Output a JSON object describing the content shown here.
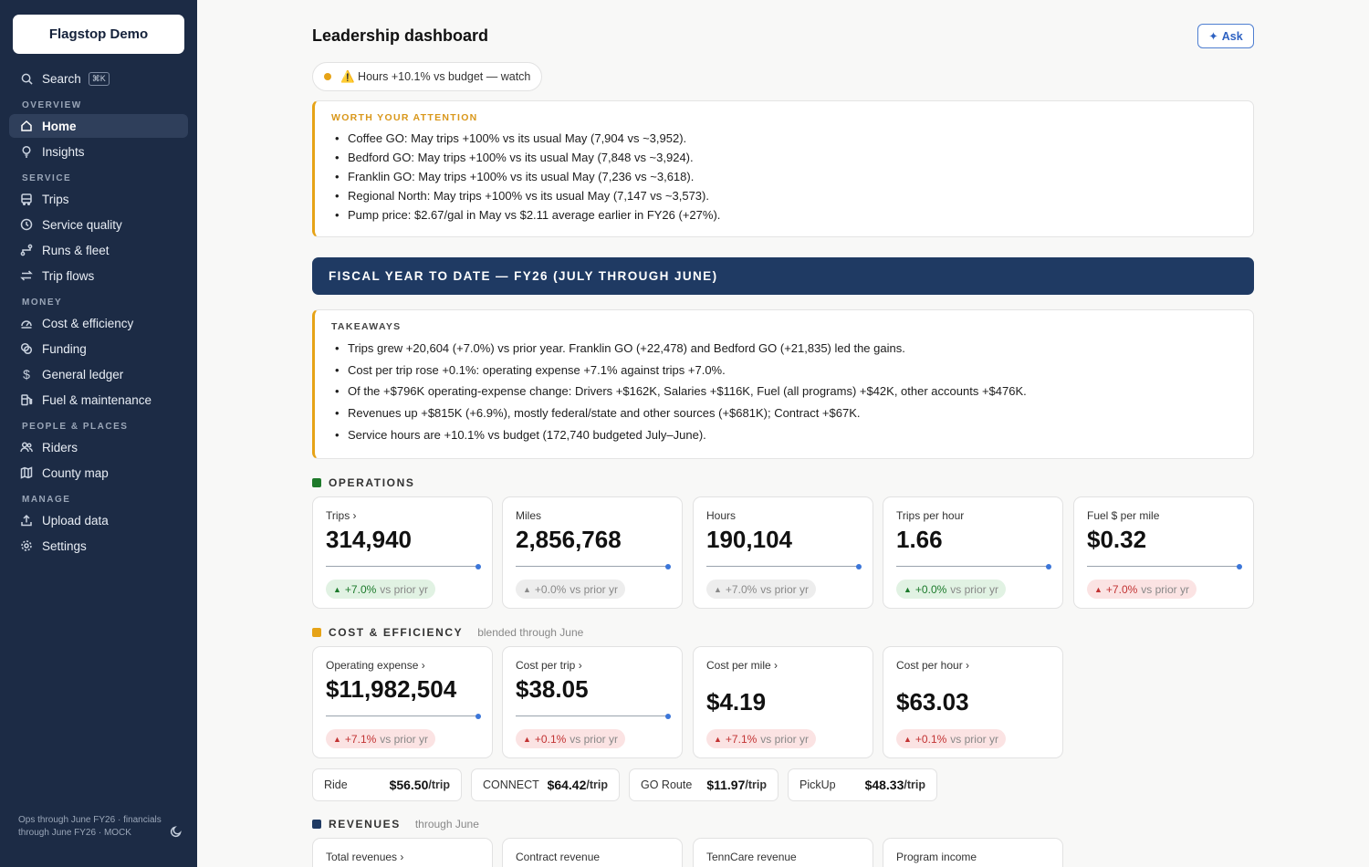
{
  "sidebar": {
    "brand": "Flagstop Demo",
    "search_label": "Search",
    "search_shortcut": "⌘K",
    "sections": {
      "overview": "OVERVIEW",
      "service": "SERVICE",
      "money": "MONEY",
      "people": "PEOPLE & PLACES",
      "manage": "MANAGE"
    },
    "items": {
      "home": "Home",
      "insights": "Insights",
      "trips": "Trips",
      "service_quality": "Service quality",
      "runs_fleet": "Runs & fleet",
      "trip_flows": "Trip flows",
      "cost_efficiency": "Cost & efficiency",
      "funding": "Funding",
      "general_ledger": "General ledger",
      "fuel_maintenance": "Fuel & maintenance",
      "riders": "Riders",
      "county_map": "County map",
      "upload_data": "Upload data",
      "settings": "Settings"
    },
    "footer": "Ops through June FY26 · financials through June FY26 · MOCK"
  },
  "header": {
    "title": "Leadership dashboard",
    "ask_label": "Ask",
    "status": "⚠️ Hours +10.1% vs budget — watch"
  },
  "attention": {
    "label": "WORTH YOUR ATTENTION",
    "items": [
      "Coffee GO: May trips +100% vs its usual May (7,904 vs ~3,952).",
      "Bedford GO: May trips +100% vs its usual May (7,848 vs ~3,924).",
      "Franklin GO: May trips +100% vs its usual May (7,236 vs ~3,618).",
      "Regional North: May trips +100% vs its usual May (7,147 vs ~3,573).",
      "Pump price: $2.67/gal in May vs $2.11 average earlier in FY26 (+27%)."
    ]
  },
  "banner": "FISCAL YEAR TO DATE — FY26 (JULY THROUGH JUNE)",
  "takeaways": {
    "label": "TAKEAWAYS",
    "items": [
      "Trips grew +20,604 (+7.0%) vs prior year. Franklin GO (+22,478) and Bedford GO (+21,835) led the gains.",
      "Cost per trip rose +0.1%: operating expense +7.1% against trips +7.0%.",
      "Of the +$796K operating-expense change: Drivers +$162K, Salaries +$116K, Fuel (all programs) +$42K, other accounts +$476K.",
      "Revenues up +$815K (+6.9%), mostly federal/state and other sources (+$681K); Contract +$67K.",
      "Service hours are +10.1% vs budget (172,740 budgeted July–June)."
    ]
  },
  "operations": {
    "label": "OPERATIONS",
    "color": "#1f7a2b",
    "cards": [
      {
        "label": "Trips ›",
        "value": "314,940",
        "delta": "+7.0%",
        "vs": "vs prior yr",
        "tone": "green"
      },
      {
        "label": "Miles",
        "value": "2,856,768",
        "delta": "+0.0%",
        "vs": "vs prior yr",
        "tone": "grey"
      },
      {
        "label": "Hours",
        "value": "190,104",
        "delta": "+7.0%",
        "vs": "vs prior yr",
        "tone": "grey"
      },
      {
        "label": "Trips per hour",
        "value": "1.66",
        "delta": "+0.0%",
        "vs": "vs prior yr",
        "tone": "green"
      },
      {
        "label": "Fuel $ per mile",
        "value": "$0.32",
        "delta": "+7.0%",
        "vs": "vs prior yr",
        "tone": "red"
      }
    ]
  },
  "cost": {
    "label": "COST & EFFICIENCY",
    "sub": "blended through June",
    "color": "#e6a317",
    "cards": [
      {
        "label": "Operating expense ›",
        "value": "$11,982,504",
        "delta": "+7.1%",
        "vs": "vs prior yr",
        "tone": "red"
      },
      {
        "label": "Cost per trip ›",
        "value": "$38.05",
        "delta": "+0.1%",
        "vs": "vs prior yr",
        "tone": "red"
      },
      {
        "label": "Cost per mile ›",
        "value": "$4.19",
        "delta": "+7.1%",
        "vs": "vs prior yr",
        "tone": "red"
      },
      {
        "label": "Cost per hour ›",
        "value": "$63.03",
        "delta": "+0.1%",
        "vs": "vs prior yr",
        "tone": "red"
      }
    ],
    "modes": [
      {
        "name": "Ride",
        "value": "$56.50",
        "unit": "/trip"
      },
      {
        "name": "CONNECT",
        "value": "$64.42",
        "unit": "/trip"
      },
      {
        "name": "GO Route",
        "value": "$11.97",
        "unit": "/trip"
      },
      {
        "name": "PickUp",
        "value": "$48.33",
        "unit": "/trip"
      }
    ]
  },
  "revenues": {
    "label": "REVENUES",
    "sub": "through June",
    "color": "#1f3a63",
    "cards": [
      {
        "label": "Total revenues ›"
      },
      {
        "label": "Contract revenue"
      },
      {
        "label": "TennCare revenue"
      },
      {
        "label": "Program income"
      }
    ]
  }
}
